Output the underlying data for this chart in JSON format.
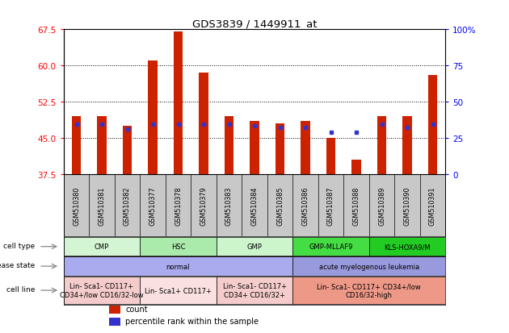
{
  "title": "GDS3839 / 1449911_at",
  "samples": [
    "GSM510380",
    "GSM510381",
    "GSM510382",
    "GSM510377",
    "GSM510378",
    "GSM510379",
    "GSM510383",
    "GSM510384",
    "GSM510385",
    "GSM510386",
    "GSM510387",
    "GSM510388",
    "GSM510389",
    "GSM510390",
    "GSM510391"
  ],
  "bar_values": [
    49.5,
    49.5,
    47.5,
    61.0,
    67.0,
    58.5,
    49.5,
    48.5,
    48.0,
    48.5,
    45.0,
    40.5,
    49.5,
    49.5,
    58.0
  ],
  "blue_values": [
    47.8,
    47.8,
    46.8,
    47.8,
    47.8,
    47.8,
    47.8,
    47.5,
    47.2,
    47.2,
    46.2,
    46.2,
    47.8,
    47.2,
    47.8
  ],
  "ymin": 37.5,
  "ymax": 67.5,
  "yticks_left": [
    37.5,
    45.0,
    52.5,
    60.0,
    67.5
  ],
  "yticks_right": [
    0,
    25,
    50,
    75,
    100
  ],
  "bar_color": "#cc2200",
  "blue_color": "#3333cc",
  "bar_bottom": 37.5,
  "bar_width": 0.35,
  "cell_type_groups": [
    {
      "label": "CMP",
      "start": 0,
      "end": 3,
      "color": "#d4f5d4"
    },
    {
      "label": "HSC",
      "start": 3,
      "end": 6,
      "color": "#aaeaaa"
    },
    {
      "label": "GMP",
      "start": 6,
      "end": 9,
      "color": "#ccf5cc"
    },
    {
      "label": "GMP-MLLAF9",
      "start": 9,
      "end": 12,
      "color": "#44dd44"
    },
    {
      "label": "KLS-HOXA9/M",
      "start": 12,
      "end": 15,
      "color": "#22cc22"
    }
  ],
  "disease_groups": [
    {
      "label": "normal",
      "start": 0,
      "end": 9,
      "color": "#aaaaee"
    },
    {
      "label": "acute myelogenous leukemia",
      "start": 9,
      "end": 15,
      "color": "#9999dd"
    }
  ],
  "cell_line_groups": [
    {
      "label": "Lin- Sca1- CD117+\nCD34+/low CD16/32-low",
      "start": 0,
      "end": 3,
      "color": "#f5cccc"
    },
    {
      "label": "Lin- Sca1+ CD117+",
      "start": 3,
      "end": 6,
      "color": "#fae0e0"
    },
    {
      "label": "Lin- Sca1- CD117+\nCD34+ CD16/32+",
      "start": 6,
      "end": 9,
      "color": "#f5cccc"
    },
    {
      "label": "Lin- Sca1- CD117+ CD34+/low\nCD16/32-high",
      "start": 9,
      "end": 15,
      "color": "#ee9988"
    }
  ],
  "row_labels": [
    "cell type",
    "disease state",
    "cell line"
  ],
  "legend_items": [
    {
      "color": "#cc2200",
      "label": "count"
    },
    {
      "color": "#3333cc",
      "label": "percentile rank within the sample"
    }
  ],
  "xtick_bg": "#c8c8c8"
}
